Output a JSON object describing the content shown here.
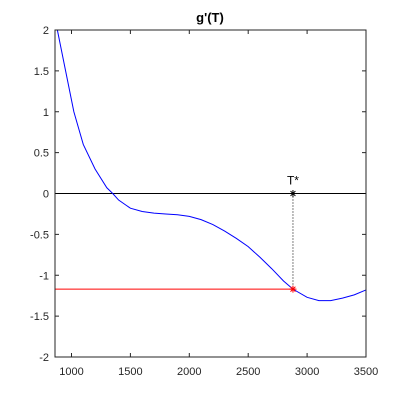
{
  "chart_data": {
    "type": "line",
    "title": "g'(T)",
    "x": [
      880,
      950,
      1020,
      1100,
      1200,
      1300,
      1350,
      1400,
      1500,
      1600,
      1700,
      1800,
      1900,
      2000,
      2100,
      2200,
      2300,
      2400,
      2500,
      2600,
      2700,
      2800,
      2880,
      3000,
      3100,
      3200,
      3300,
      3400,
      3500
    ],
    "series": [
      {
        "color": "#0000ff",
        "values": [
          2,
          1.5,
          1.0,
          0.6,
          0.3,
          0.07,
          0,
          -0.08,
          -0.18,
          -0.22,
          -0.24,
          -0.25,
          -0.26,
          -0.28,
          -0.32,
          -0.38,
          -0.46,
          -0.55,
          -0.65,
          -0.78,
          -0.92,
          -1.07,
          -1.17,
          -1.27,
          -1.31,
          -1.31,
          -1.28,
          -1.24,
          -1.18
        ]
      }
    ],
    "xlim": [
      860,
      3500
    ],
    "ylim": [
      -2,
      2
    ],
    "xticks": [
      1000,
      1500,
      2000,
      2500,
      3000,
      3500
    ],
    "yticks": [
      -2,
      -1.5,
      -1,
      -0.5,
      0,
      0.5,
      1,
      1.5,
      2
    ],
    "zero_line": {
      "y": 0,
      "color": "#000000"
    },
    "level_line": {
      "y": -1.17,
      "color": "#ff0000"
    },
    "markers": [
      {
        "x": 2880,
        "y": 0,
        "color": "#000000",
        "label": "T*"
      },
      {
        "x": 2880,
        "y": -1.17,
        "color": "#ff0000"
      }
    ]
  }
}
